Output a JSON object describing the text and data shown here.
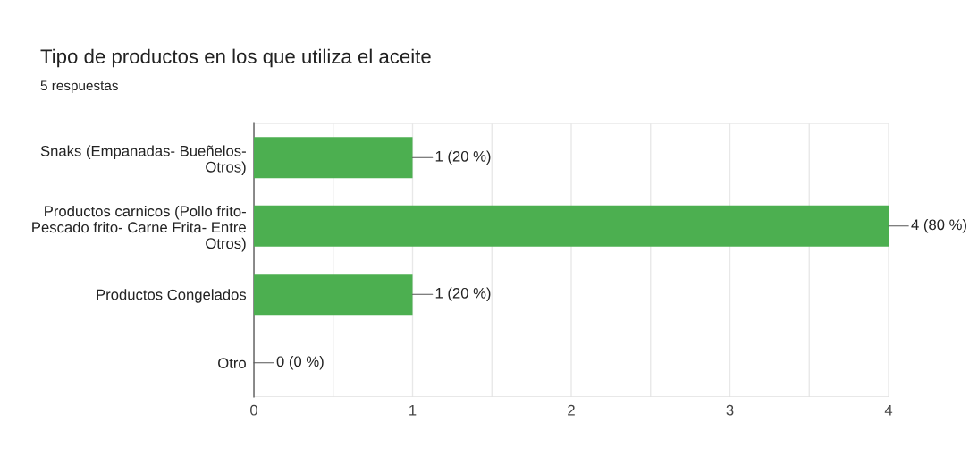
{
  "chart_data": {
    "type": "bar",
    "orientation": "horizontal",
    "title": "Tipo de productos en los que utiliza el aceite",
    "subtitle": "5 respuestas",
    "categories": [
      "Snaks (Empanadas- Bueñelos- Otros)",
      "Productos carnicos (Pollo frito- Pescado frito- Carne Frita- Entre Otros)",
      "Productos Congelados",
      "Otro"
    ],
    "values": [
      1,
      4,
      1,
      0
    ],
    "color": "#4caf50",
    "value_labels": [
      "1 (20 %)",
      "4 (80 %)",
      "1 (20 %)",
      "0 (0 %)"
    ],
    "xlim": [
      0,
      4
    ],
    "xticks": [
      0,
      {
        "value": 0.5,
        "label": null
      },
      1,
      {
        "value": 1.5,
        "label": null
      },
      2,
      {
        "value": 2.5,
        "label": null
      },
      3,
      {
        "value": 3.5,
        "label": null
      },
      4
    ],
    "grid": "x"
  }
}
